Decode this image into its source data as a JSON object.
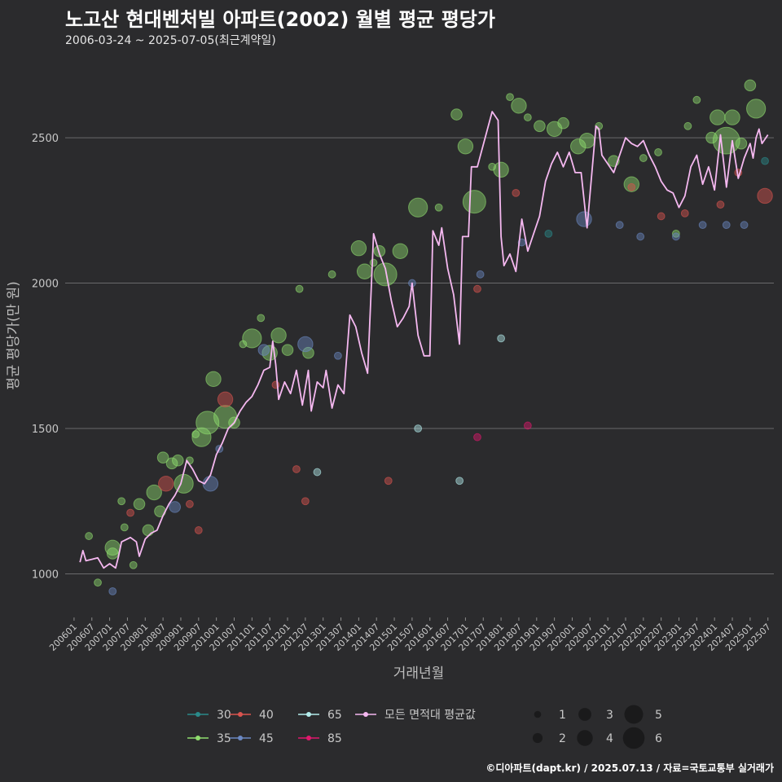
{
  "title": "노고산 현대벤처빌 아파트(2002) 월별 평균 평당가",
  "subtitle": "2006-03-24 ~ 2025-07-05(최근계약일)",
  "caption": "©디아파트(dapt.kr) / 2025.07.13 / 자료=국토교통부 실거래가",
  "chart_data": {
    "type": "scatter",
    "xlabel": "거래년월",
    "ylabel": "평균 평당가(만 원)",
    "ylim": [
      850,
      2800
    ],
    "yticks": [
      1000,
      1500,
      2000,
      2500
    ],
    "xticks": [
      "200601",
      "200607",
      "200701",
      "200707",
      "200801",
      "200807",
      "200901",
      "200907",
      "201001",
      "201007",
      "201101",
      "201107",
      "201201",
      "201207",
      "201301",
      "201307",
      "201401",
      "201407",
      "201501",
      "201507",
      "201601",
      "201607",
      "201701",
      "201707",
      "201801",
      "201807",
      "201901",
      "201907",
      "202001",
      "202007",
      "202101",
      "202107",
      "202201",
      "202207",
      "202301",
      "202307",
      "202401",
      "202407",
      "202501",
      "202507"
    ],
    "grid": "horizontal",
    "legend_position": "bottom",
    "area_colors": {
      "30": "#2a8a8a",
      "35": "#8fdc6e",
      "40": "#d9544f",
      "45": "#6b88c2",
      "65": "#b3ecec",
      "85": "#e0186c"
    },
    "avg_color": "#f5b8f0",
    "legend_area": [
      "30",
      "35",
      "40",
      "45",
      "65",
      "85"
    ],
    "legend_avg_label": "모든 면적대 평균값",
    "legend_size": [
      "1",
      "2",
      "3",
      "4",
      "5",
      "6"
    ],
    "series": [
      {
        "name": "모든 면적대 평균값",
        "type": "line",
        "points": [
          [
            "2006-03",
            1040
          ],
          [
            "2006-04",
            1080
          ],
          [
            "2006-05",
            1045
          ],
          [
            "2006-07",
            1050
          ],
          [
            "2006-09",
            1055
          ],
          [
            "2006-11",
            1020
          ],
          [
            "2007-01",
            1035
          ],
          [
            "2007-03",
            1020
          ],
          [
            "2007-04",
            1060
          ],
          [
            "2007-05",
            1110
          ],
          [
            "2007-06",
            1115
          ],
          [
            "2007-08",
            1125
          ],
          [
            "2007-10",
            1110
          ],
          [
            "2007-11",
            1060
          ],
          [
            "2008-01",
            1120
          ],
          [
            "2008-03",
            1140
          ],
          [
            "2008-05",
            1150
          ],
          [
            "2008-07",
            1200
          ],
          [
            "2008-09",
            1240
          ],
          [
            "2008-11",
            1270
          ],
          [
            "2009-01",
            1310
          ],
          [
            "2009-03",
            1390
          ],
          [
            "2009-05",
            1360
          ],
          [
            "2009-07",
            1320
          ],
          [
            "2009-09",
            1310
          ],
          [
            "2009-11",
            1340
          ],
          [
            "2010-01",
            1410
          ],
          [
            "2010-03",
            1450
          ],
          [
            "2010-05",
            1500
          ],
          [
            "2010-07",
            1520
          ],
          [
            "2010-09",
            1560
          ],
          [
            "2010-11",
            1590
          ],
          [
            "2011-01",
            1610
          ],
          [
            "2011-03",
            1650
          ],
          [
            "2011-05",
            1700
          ],
          [
            "2011-07",
            1710
          ],
          [
            "2011-08",
            1800
          ],
          [
            "2011-09",
            1720
          ],
          [
            "2011-10",
            1600
          ],
          [
            "2011-12",
            1660
          ],
          [
            "2012-02",
            1620
          ],
          [
            "2012-04",
            1700
          ],
          [
            "2012-06",
            1580
          ],
          [
            "2012-08",
            1700
          ],
          [
            "2012-09",
            1560
          ],
          [
            "2012-11",
            1660
          ],
          [
            "2013-01",
            1640
          ],
          [
            "2013-02",
            1700
          ],
          [
            "2013-04",
            1570
          ],
          [
            "2013-06",
            1650
          ],
          [
            "2013-08",
            1620
          ],
          [
            "2013-10",
            1890
          ],
          [
            "2013-12",
            1850
          ],
          [
            "2014-02",
            1760
          ],
          [
            "2014-04",
            1690
          ],
          [
            "2014-06",
            2170
          ],
          [
            "2014-08",
            2100
          ],
          [
            "2014-10",
            2050
          ],
          [
            "2014-12",
            1940
          ],
          [
            "2015-02",
            1850
          ],
          [
            "2015-04",
            1880
          ],
          [
            "2015-06",
            1920
          ],
          [
            "2015-07",
            2000
          ],
          [
            "2015-09",
            1820
          ],
          [
            "2015-11",
            1750
          ],
          [
            "2016-01",
            1750
          ],
          [
            "2016-02",
            2180
          ],
          [
            "2016-04",
            2130
          ],
          [
            "2016-05",
            2190
          ],
          [
            "2016-07",
            2050
          ],
          [
            "2016-09",
            1960
          ],
          [
            "2016-11",
            1790
          ],
          [
            "2016-12",
            2160
          ],
          [
            "2017-02",
            2160
          ],
          [
            "2017-03",
            2400
          ],
          [
            "2017-05",
            2400
          ],
          [
            "2017-10",
            2590
          ],
          [
            "2017-12",
            2560
          ],
          [
            "2018-01",
            2160
          ],
          [
            "2018-02",
            2060
          ],
          [
            "2018-04",
            2100
          ],
          [
            "2018-06",
            2040
          ],
          [
            "2018-08",
            2220
          ],
          [
            "2018-10",
            2110
          ],
          [
            "2018-12",
            2170
          ],
          [
            "2019-02",
            2230
          ],
          [
            "2019-04",
            2350
          ],
          [
            "2019-06",
            2410
          ],
          [
            "2019-08",
            2450
          ],
          [
            "2019-10",
            2400
          ],
          [
            "2019-12",
            2450
          ],
          [
            "2020-02",
            2380
          ],
          [
            "2020-04",
            2380
          ],
          [
            "2020-06",
            2190
          ],
          [
            "2020-09",
            2540
          ],
          [
            "2020-10",
            2530
          ],
          [
            "2020-11",
            2440
          ],
          [
            "2021-01",
            2410
          ],
          [
            "2021-03",
            2380
          ],
          [
            "2021-05",
            2440
          ],
          [
            "2021-07",
            2500
          ],
          [
            "2021-09",
            2480
          ],
          [
            "2021-11",
            2470
          ],
          [
            "2022-01",
            2490
          ],
          [
            "2022-03",
            2440
          ],
          [
            "2022-05",
            2400
          ],
          [
            "2022-07",
            2350
          ],
          [
            "2022-09",
            2320
          ],
          [
            "2022-11",
            2310
          ],
          [
            "2023-01",
            2260
          ],
          [
            "2023-03",
            2300
          ],
          [
            "2023-05",
            2400
          ],
          [
            "2023-07",
            2440
          ],
          [
            "2023-09",
            2340
          ],
          [
            "2023-11",
            2400
          ],
          [
            "2024-01",
            2320
          ],
          [
            "2024-03",
            2510
          ],
          [
            "2024-05",
            2330
          ],
          [
            "2024-07",
            2490
          ],
          [
            "2024-09",
            2360
          ],
          [
            "2024-11",
            2430
          ],
          [
            "2025-01",
            2480
          ],
          [
            "2025-02",
            2430
          ],
          [
            "2025-03",
            2500
          ],
          [
            "2025-04",
            2530
          ],
          [
            "2025-05",
            2480
          ],
          [
            "2025-07",
            2510
          ]
        ]
      },
      {
        "name": "35",
        "type": "bubble",
        "points": [
          [
            "2006-06",
            1130,
            1
          ],
          [
            "2006-09",
            970,
            1
          ],
          [
            "2007-02",
            1090,
            3
          ],
          [
            "2007-02",
            1070,
            2
          ],
          [
            "2007-05",
            1250,
            1
          ],
          [
            "2007-06",
            1160,
            1
          ],
          [
            "2007-09",
            1030,
            1
          ],
          [
            "2007-11",
            1240,
            2
          ],
          [
            "2008-02",
            1150,
            2
          ],
          [
            "2008-04",
            1280,
            3
          ],
          [
            "2008-06",
            1215,
            2
          ],
          [
            "2008-07",
            1400,
            2
          ],
          [
            "2008-10",
            1380,
            2
          ],
          [
            "2008-12",
            1390,
            2
          ],
          [
            "2009-02",
            1310,
            4
          ],
          [
            "2009-04",
            1390,
            1
          ],
          [
            "2009-06",
            1480,
            1
          ],
          [
            "2009-08",
            1470,
            4
          ],
          [
            "2009-10",
            1520,
            5
          ],
          [
            "2009-12",
            1670,
            3
          ],
          [
            "2010-04",
            1540,
            5
          ],
          [
            "2010-07",
            1520,
            2
          ],
          [
            "2010-10",
            1790,
            1
          ],
          [
            "2011-01",
            1810,
            4
          ],
          [
            "2011-04",
            1880,
            1
          ],
          [
            "2011-07",
            1760,
            3
          ],
          [
            "2011-10",
            1820,
            3
          ],
          [
            "2012-01",
            1770,
            2
          ],
          [
            "2012-05",
            1980,
            1
          ],
          [
            "2012-08",
            1760,
            2
          ],
          [
            "2013-04",
            2030,
            1
          ],
          [
            "2014-01",
            2120,
            3
          ],
          [
            "2014-03",
            2040,
            3
          ],
          [
            "2014-06",
            2070,
            1
          ],
          [
            "2014-08",
            2110,
            2
          ],
          [
            "2014-10",
            2030,
            5
          ],
          [
            "2015-03",
            2110,
            3
          ],
          [
            "2015-09",
            2260,
            4
          ],
          [
            "2016-04",
            2260,
            1
          ],
          [
            "2016-10",
            2580,
            2
          ],
          [
            "2017-01",
            2470,
            3
          ],
          [
            "2017-04",
            2280,
            5
          ],
          [
            "2017-10",
            2400,
            1
          ],
          [
            "2018-01",
            2390,
            3
          ],
          [
            "2018-04",
            2640,
            1
          ],
          [
            "2018-07",
            2610,
            3
          ],
          [
            "2018-10",
            2570,
            1
          ],
          [
            "2019-02",
            2540,
            2
          ],
          [
            "2019-07",
            2530,
            3
          ],
          [
            "2019-10",
            2550,
            2
          ],
          [
            "2020-03",
            2470,
            3
          ],
          [
            "2020-06",
            2490,
            3
          ],
          [
            "2020-10",
            2540,
            1
          ],
          [
            "2021-03",
            2420,
            2
          ],
          [
            "2021-09",
            2340,
            3
          ],
          [
            "2022-01",
            2430,
            1
          ],
          [
            "2022-06",
            2450,
            1
          ],
          [
            "2022-12",
            2170,
            1
          ],
          [
            "2023-04",
            2540,
            1
          ],
          [
            "2023-07",
            2630,
            1
          ],
          [
            "2023-12",
            2500,
            2
          ],
          [
            "2024-02",
            2570,
            3
          ],
          [
            "2024-05",
            2490,
            6
          ],
          [
            "2024-07",
            2570,
            3
          ],
          [
            "2024-10",
            2480,
            2
          ],
          [
            "2025-01",
            2680,
            2
          ],
          [
            "2025-03",
            2600,
            4
          ]
        ]
      },
      {
        "name": "40",
        "type": "bubble",
        "points": [
          [
            "2007-08",
            1210,
            1
          ],
          [
            "2008-08",
            1310,
            3
          ],
          [
            "2009-04",
            1240,
            1
          ],
          [
            "2009-07",
            1150,
            1
          ],
          [
            "2010-04",
            1600,
            3
          ],
          [
            "2011-09",
            1650,
            1
          ],
          [
            "2012-04",
            1360,
            1
          ],
          [
            "2012-07",
            1250,
            1
          ],
          [
            "2014-11",
            1320,
            1
          ],
          [
            "2017-05",
            1980,
            1
          ],
          [
            "2018-06",
            2310,
            1
          ],
          [
            "2021-09",
            2330,
            1
          ],
          [
            "2022-07",
            2230,
            1
          ],
          [
            "2023-03",
            2240,
            1
          ],
          [
            "2024-03",
            2270,
            1
          ],
          [
            "2024-09",
            2380,
            1
          ],
          [
            "2025-06",
            2300,
            3
          ]
        ]
      },
      {
        "name": "45",
        "type": "bubble",
        "points": [
          [
            "2007-02",
            940,
            1
          ],
          [
            "2008-11",
            1230,
            2
          ],
          [
            "2009-11",
            1310,
            3
          ],
          [
            "2010-02",
            1430,
            1
          ],
          [
            "2011-05",
            1770,
            2
          ],
          [
            "2012-07",
            1790,
            3
          ],
          [
            "2013-06",
            1750,
            1
          ],
          [
            "2015-07",
            2000,
            1
          ],
          [
            "2017-06",
            2030,
            1
          ],
          [
            "2018-08",
            2140,
            1
          ],
          [
            "2020-05",
            2220,
            3
          ],
          [
            "2021-05",
            2200,
            1
          ],
          [
            "2021-12",
            2160,
            1
          ],
          [
            "2022-12",
            2160,
            1
          ],
          [
            "2023-09",
            2200,
            1
          ],
          [
            "2024-05",
            2200,
            1
          ],
          [
            "2024-11",
            2200,
            1
          ]
        ]
      },
      {
        "name": "65",
        "type": "bubble",
        "points": [
          [
            "2012-11",
            1350,
            1
          ],
          [
            "2015-09",
            1500,
            1
          ],
          [
            "2016-11",
            1320,
            1
          ],
          [
            "2018-01",
            1810,
            1
          ]
        ]
      },
      {
        "name": "85",
        "type": "bubble",
        "points": [
          [
            "2017-05",
            1470,
            1
          ],
          [
            "2018-10",
            1510,
            1
          ]
        ]
      },
      {
        "name": "30",
        "type": "bubble",
        "points": [
          [
            "2019-05",
            2170,
            1
          ],
          [
            "2025-06",
            2420,
            1
          ]
        ]
      }
    ]
  }
}
